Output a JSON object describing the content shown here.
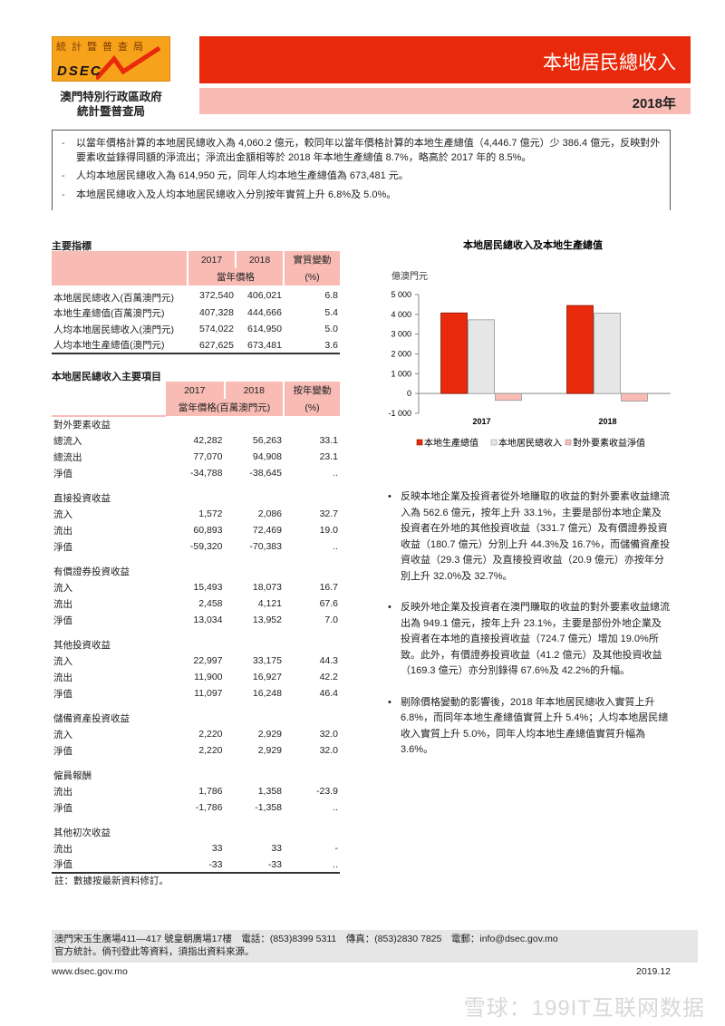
{
  "header": {
    "logo_top": "統計暨普查局",
    "logo_text": "DSEC",
    "agency_line1": "澳門特別行政區政府",
    "agency_line2": "統計暨普查局",
    "title": "本地居民總收入",
    "year": "2018年"
  },
  "summary": [
    "以當年價格計算的本地居民總收入為 4,060.2 億元，較同年以當年價格計算的本地生產總值（4,446.7 億元）少 386.4 億元，反映對外要素收益錄得同額的淨流出；淨流出金額相等於 2018 年本地生產總值 8.7%，略高於 2017 年的 8.5%。",
    "人均本地居民總收入為 614,950 元，同年人均本地生產總值為 673,481 元。",
    "本地居民總收入及人均本地居民總收入分別按年實質上升 6.8%及 5.0%。"
  ],
  "table1": {
    "title": "主要指標",
    "col2017": "2017",
    "col2018": "2018",
    "sub": "當年價格",
    "change": "實質變動",
    "unit": "(%)",
    "rows": [
      [
        "本地居民總收入(百萬澳門元)",
        "372,540",
        "406,021",
        "6.8"
      ],
      [
        "本地生產總值(百萬澳門元)",
        "407,328",
        "444,666",
        "5.4"
      ],
      [
        "人均本地居民總收入(澳門元)",
        "574,022",
        "614,950",
        "5.0"
      ],
      [
        "人均本地生產總值(澳門元)",
        "627,625",
        "673,481",
        "3.6"
      ]
    ]
  },
  "table2": {
    "title": "本地居民總收入主要項目",
    "col2017": "2017",
    "col2018": "2018",
    "sub": "當年價格(百萬澳門元)",
    "change": "按年變動",
    "unit": "(%)",
    "groups": [
      {
        "title": "對外要素收益",
        "rows": [
          [
            "總流入",
            "42,282",
            "56,263",
            "33.1"
          ],
          [
            "總流出",
            "77,070",
            "94,908",
            "23.1"
          ],
          [
            "淨值",
            "-34,788",
            "-38,645",
            ".."
          ]
        ]
      },
      {
        "title": "直接投資收益",
        "rows": [
          [
            "流入",
            "1,572",
            "2,086",
            "32.7"
          ],
          [
            "流出",
            "60,893",
            "72,469",
            "19.0"
          ],
          [
            "淨值",
            "-59,320",
            "-70,383",
            ".."
          ]
        ]
      },
      {
        "title": "有價證券投資收益",
        "rows": [
          [
            "流入",
            "15,493",
            "18,073",
            "16.7"
          ],
          [
            "流出",
            "2,458",
            "4,121",
            "67.6"
          ],
          [
            "淨值",
            "13,034",
            "13,952",
            "7.0"
          ]
        ]
      },
      {
        "title": "其他投資收益",
        "rows": [
          [
            "流入",
            "22,997",
            "33,175",
            "44.3"
          ],
          [
            "流出",
            "11,900",
            "16,927",
            "42.2"
          ],
          [
            "淨值",
            "11,097",
            "16,248",
            "46.4"
          ]
        ]
      },
      {
        "title": "儲備資產投資收益",
        "rows": [
          [
            "流入",
            "2,220",
            "2,929",
            "32.0"
          ],
          [
            "淨值",
            "2,220",
            "2,929",
            "32.0"
          ]
        ]
      },
      {
        "title": "僱員報酬",
        "rows": [
          [
            "流出",
            "1,786",
            "1,358",
            "-23.9"
          ],
          [
            "淨值",
            "-1,786",
            "-1,358",
            ".."
          ]
        ]
      },
      {
        "title": "其他初次收益",
        "rows": [
          [
            "流出",
            "33",
            "33",
            "-"
          ],
          [
            "淨值",
            "-33",
            "-33",
            ".."
          ]
        ]
      }
    ],
    "note": "註：數據按最新資料修訂。"
  },
  "chart_data": {
    "type": "bar",
    "title": "本地居民總收入及本地生產總值",
    "ylabel": "億澳門元",
    "categories": [
      "2017",
      "2018"
    ],
    "ylim": [
      -1000,
      5000
    ],
    "yticks": [
      "-1 000",
      "0",
      "1 000",
      "2 000",
      "3 000",
      "4 000",
      "5 000"
    ],
    "legend": "bottom",
    "series": [
      {
        "name": "本地生產總值",
        "values": [
          4073.3,
          4446.7
        ],
        "color": "#e8290b"
      },
      {
        "name": "本地居民總收入",
        "values": [
          3725.4,
          4060.2
        ],
        "color": "#e6e6e6"
      },
      {
        "name": "對外要素收益淨值",
        "values": [
          -347.9,
          -386.4
        ],
        "color": "#f8bcb5"
      }
    ]
  },
  "bullets": [
    "反映本地企業及投資者從外地賺取的收益的對外要素收益總流入為 562.6 億元，按年上升 33.1%，主要是部份本地企業及投資者在外地的其他投資收益（331.7 億元）及有價證券投資收益（180.7 億元）分別上升 44.3%及 16.7%，而儲備資產投資收益（29.3 億元）及直接投資收益（20.9 億元）亦按年分別上升 32.0%及 32.7%。",
    "反映外地企業及投資者在澳門賺取的收益的對外要素收益總流出為 949.1 億元，按年上升 23.1%，主要是部份外地企業及投資者在本地的直接投資收益（724.7 億元）增加 19.0%所致。此外，有價證券投資收益（41.2 億元）及其他投資收益（169.3 億元）亦分別錄得 67.6%及 42.2%的升幅。",
    "剔除價格變動的影響後，2018 年本地居民總收入實質上升 6.8%，而同年本地生產總值實質上升 5.4%；人均本地居民總收入實質上升 5.0%，同年人均本地生產總值實質升幅為 3.6%。"
  ],
  "footer": {
    "address": "澳門宋玉生廣場411—417 號皇朝廣場17樓　電話：(853)8399 5311　傳真：(853)2830 7825　電郵：info@dsec.gov.mo",
    "notice": "官方統計。倘刊登此等資料，須指出資料來源。",
    "website": "www.dsec.gov.mo",
    "date": "2019.12"
  },
  "watermark": "雪球：199IT互联网数据"
}
